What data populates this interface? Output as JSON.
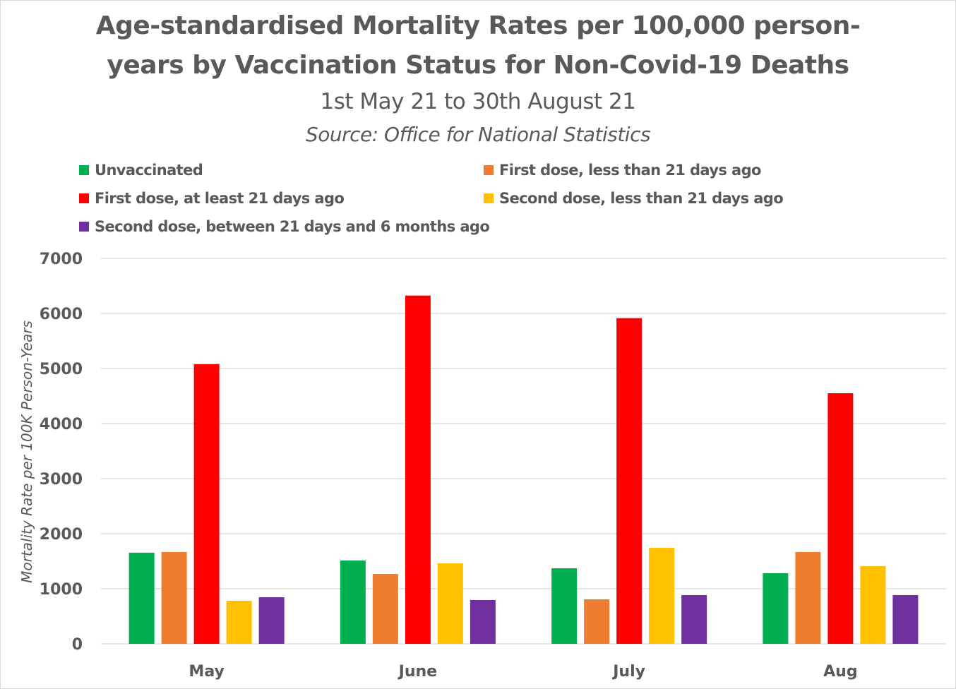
{
  "chart_data": {
    "type": "bar",
    "title": "Age-standardised Mortality Rates per 100,000 person-years by Vaccination Status for Non-Covid-19 Deaths",
    "title_lines": [
      "Age-standardised Mortality Rates per 100,000 person-",
      "years by Vaccination Status for Non-Covid-19 Deaths"
    ],
    "subtitle": "1st May 21 to 30th August 21",
    "source": "Source: Office for National Statistics",
    "xlabel": "",
    "ylabel": "Mortality Rate per 100K Person-Years",
    "ylim": [
      0,
      7000
    ],
    "yticks": [
      0,
      1000,
      2000,
      3000,
      4000,
      5000,
      6000,
      7000
    ],
    "grid": true,
    "legend_position": "top",
    "categories": [
      "May",
      "June",
      "July",
      "Aug"
    ],
    "series": [
      {
        "name": "Unvaccinated",
        "color": "#00b050",
        "values": [
          1655,
          1513,
          1372,
          1282
        ]
      },
      {
        "name": "First dose, less than 21 days ago",
        "color": "#ed7d31",
        "values": [
          1667,
          1269,
          808,
          1667
        ]
      },
      {
        "name": "First dose, at least 21 days ago",
        "color": "#ff0000",
        "values": [
          5080,
          6325,
          5915,
          4551
        ]
      },
      {
        "name": "Second dose, less than 21 days ago",
        "color": "#ffc000",
        "values": [
          782,
          1462,
          1744,
          1410
        ]
      },
      {
        "name": "Second dose, between 21 days and 6 months ago",
        "color": "#7030a0",
        "values": [
          846,
          795,
          885,
          885
        ]
      }
    ]
  }
}
